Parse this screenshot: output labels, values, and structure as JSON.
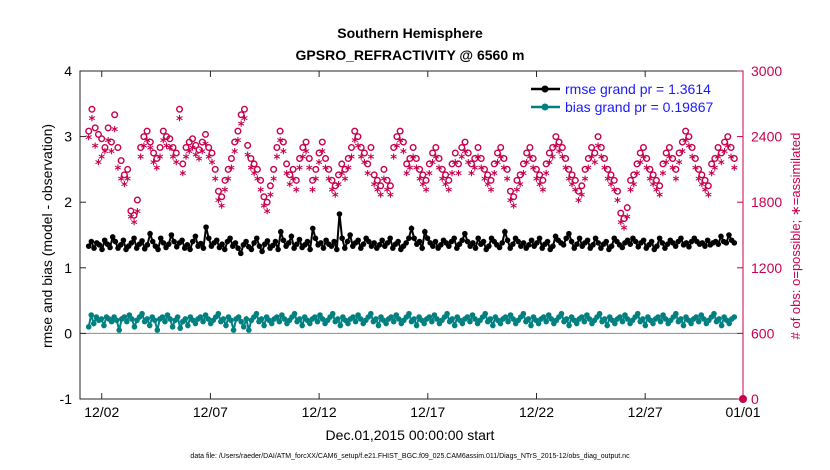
{
  "chart_data": {
    "type": "line",
    "title": "Southern Hemisphere",
    "subtitle": "GPSRO_REFRACTIVITY @ 6560 m",
    "xlabel": "Dec.01,2015 00:00:00 start",
    "ylabel": "rmse and bias (model - observation)",
    "y2label": "# of obs: o=possible; ∗=assimilated",
    "footer": "data file: /Users/raeder/DAI/ATM_forcXX/CAM6_setup/f.e21.FHIST_BGC.f09_025.CAM6assim.011/Diags_NTrS_2015-12/obs_diag_output.nc",
    "xlim": [
      0.5,
      31.0
    ],
    "ylim": [
      -1,
      4
    ],
    "y2lim": [
      0,
      3000
    ],
    "x_ticks": [
      1.5,
      6.5,
      11.5,
      16.5,
      21.5,
      26.5,
      31.0
    ],
    "x_tick_labels": [
      "12/02",
      "12/07",
      "12/12",
      "12/17",
      "12/22",
      "12/27",
      "01/01"
    ],
    "y_ticks": [
      -1,
      0,
      1,
      2,
      3,
      4
    ],
    "y_tick_labels": [
      "-1",
      "0",
      "1",
      "2",
      "3",
      "4"
    ],
    "y2_ticks": [
      0,
      600,
      1200,
      1800,
      2400,
      3000
    ],
    "y2_tick_labels": [
      "0",
      "600",
      "1200",
      "1800",
      "2400",
      "3000"
    ],
    "zero_line_y": 0,
    "rmse": {
      "legend": "rmse grand pr = 1.3614",
      "color": "#000000",
      "values": [
        1.33,
        1.4,
        1.3,
        1.38,
        1.35,
        1.28,
        1.42,
        1.36,
        1.31,
        1.47,
        1.4,
        1.3,
        1.35,
        1.42,
        1.28,
        1.33,
        1.38,
        1.45,
        1.3,
        1.36,
        1.41,
        1.29,
        1.35,
        1.52,
        1.4,
        1.33,
        1.28,
        1.45,
        1.38,
        1.31,
        1.36,
        1.5,
        1.4,
        1.32,
        1.38,
        1.42,
        1.3,
        1.35,
        1.28,
        1.4,
        1.48,
        1.33,
        1.37,
        1.3,
        1.62,
        1.45,
        1.33,
        1.38,
        1.42,
        1.31,
        1.36,
        1.28,
        1.4,
        1.45,
        1.33,
        1.38,
        1.3,
        1.22,
        1.35,
        1.4,
        1.32,
        1.28,
        1.38,
        1.45,
        1.33,
        1.25,
        1.36,
        1.41,
        1.3,
        1.34,
        1.4,
        1.28,
        1.55,
        1.42,
        1.33,
        1.38,
        1.48,
        1.3,
        1.36,
        1.43,
        1.31,
        1.35,
        1.4,
        1.28,
        1.6,
        1.45,
        1.35,
        1.38,
        1.3,
        1.42,
        1.36,
        1.33,
        1.4,
        1.28,
        1.82,
        1.45,
        1.3,
        1.4,
        1.5,
        1.33,
        1.38,
        1.42,
        1.3,
        1.36,
        1.45,
        1.4,
        1.33,
        1.38,
        1.3,
        1.35,
        1.42,
        1.33,
        1.38,
        1.45,
        1.3,
        1.36,
        1.4,
        1.28,
        1.33,
        1.38,
        1.45,
        1.6,
        1.45,
        1.36,
        1.4,
        1.3,
        1.55,
        1.45,
        1.38,
        1.33,
        1.4,
        1.3,
        1.35,
        1.42,
        1.38,
        1.33,
        1.4,
        1.45,
        1.3,
        1.36,
        1.42,
        1.52,
        1.4,
        1.33,
        1.38,
        1.3,
        1.45,
        1.36,
        1.4,
        1.28,
        1.33,
        1.45,
        1.4,
        1.35,
        1.31,
        1.38,
        1.55,
        1.42,
        1.3,
        1.36,
        1.45,
        1.4,
        1.33,
        1.38,
        1.3,
        1.35,
        1.42,
        1.33,
        1.38,
        1.45,
        1.3,
        1.36,
        1.4,
        1.28,
        1.33,
        1.48,
        1.42,
        1.38,
        1.35,
        1.45,
        1.52,
        1.4,
        1.3,
        1.36,
        1.45,
        1.33,
        1.38,
        1.42,
        1.3,
        1.35,
        1.45,
        1.38,
        1.3,
        1.36,
        1.4,
        1.28,
        1.33,
        1.45,
        1.4,
        1.35,
        1.31,
        1.38,
        1.42,
        1.36,
        1.45,
        1.4,
        1.32,
        1.38,
        1.42,
        1.3,
        1.35,
        1.4,
        1.28,
        1.33,
        1.45,
        1.38,
        1.3,
        1.36,
        1.42,
        1.38,
        1.33,
        1.4,
        1.45,
        1.35,
        1.38,
        1.32,
        1.4,
        1.45,
        1.4,
        1.36,
        1.38,
        1.33,
        1.42,
        1.35,
        1.38,
        1.4,
        1.36,
        1.48,
        1.4,
        1.38,
        1.5,
        1.42,
        1.38
      ]
    },
    "bias": {
      "legend": "bias grand pr = 0.19867",
      "color": "#008080",
      "values": [
        0.1,
        0.28,
        0.15,
        0.25,
        0.2,
        0.22,
        0.12,
        0.25,
        0.22,
        0.18,
        0.25,
        0.2,
        0.05,
        0.22,
        0.25,
        0.18,
        0.28,
        0.22,
        0.1,
        0.2,
        0.25,
        0.3,
        0.18,
        0.22,
        0.12,
        0.25,
        0.2,
        0.05,
        0.22,
        0.25,
        0.18,
        0.28,
        0.22,
        0.1,
        0.2,
        0.25,
        0.08,
        0.18,
        0.22,
        0.12,
        0.25,
        0.2,
        0.15,
        0.22,
        0.25,
        0.18,
        0.28,
        0.22,
        0.15,
        0.2,
        0.25,
        0.3,
        0.18,
        0.22,
        0.12,
        0.25,
        0.2,
        0.05,
        0.22,
        0.25,
        0.18,
        0.1,
        0.22,
        0.05,
        0.2,
        0.25,
        0.3,
        0.18,
        0.22,
        0.12,
        0.25,
        0.2,
        0.15,
        0.22,
        0.25,
        0.18,
        0.28,
        0.22,
        0.15,
        0.2,
        0.25,
        0.3,
        0.18,
        0.22,
        0.12,
        0.25,
        0.2,
        0.15,
        0.22,
        0.25,
        0.18,
        0.28,
        0.22,
        0.15,
        0.2,
        0.25,
        0.3,
        0.18,
        0.22,
        0.12,
        0.25,
        0.2,
        0.15,
        0.22,
        0.25,
        0.18,
        0.28,
        0.22,
        0.15,
        0.2,
        0.25,
        0.3,
        0.18,
        0.22,
        0.12,
        0.25,
        0.2,
        0.15,
        0.22,
        0.25,
        0.18,
        0.28,
        0.22,
        0.15,
        0.2,
        0.25,
        0.3,
        0.18,
        0.22,
        0.12,
        0.25,
        0.2,
        0.15,
        0.22,
        0.25,
        0.18,
        0.28,
        0.22,
        0.15,
        0.2,
        0.25,
        0.3,
        0.18,
        0.22,
        0.12,
        0.25,
        0.2,
        0.15,
        0.22,
        0.25,
        0.18,
        0.28,
        0.22,
        0.15,
        0.2,
        0.25,
        0.3,
        0.18,
        0.22,
        0.12,
        0.25,
        0.2,
        0.15,
        0.22,
        0.25,
        0.18,
        0.28,
        0.22,
        0.15,
        0.2,
        0.25,
        0.3,
        0.18,
        0.22,
        0.12,
        0.25,
        0.2,
        0.15,
        0.22,
        0.25,
        0.18,
        0.28,
        0.22,
        0.15,
        0.2,
        0.25,
        0.3,
        0.18,
        0.22,
        0.12,
        0.25,
        0.2,
        0.15,
        0.22,
        0.25,
        0.18,
        0.28,
        0.22,
        0.15,
        0.2,
        0.25,
        0.3,
        0.18,
        0.22,
        0.12,
        0.25,
        0.2,
        0.15,
        0.22,
        0.25,
        0.18,
        0.28,
        0.22,
        0.15,
        0.2,
        0.25,
        0.3,
        0.18,
        0.22,
        0.12,
        0.25,
        0.2,
        0.15,
        0.22,
        0.25,
        0.18,
        0.28,
        0.22,
        0.15,
        0.2,
        0.25,
        0.3,
        0.18,
        0.22,
        0.12,
        0.25,
        0.2,
        0.15,
        0.22,
        0.25,
        0.18,
        0.28,
        0.22,
        0.15,
        0.2,
        0.25,
        0.3,
        0.18,
        0.22,
        0.12,
        0.25,
        0.2,
        0.15,
        0.22,
        0.25
      ]
    },
    "obs_possible": {
      "marker": "o",
      "color": "#c8004e",
      "values": [
        2450,
        2650,
        2480,
        2420,
        2380,
        2300,
        2480,
        2350,
        2600,
        2300,
        2180,
        2050,
        2100,
        1720,
        1680,
        1820,
        2300,
        2400,
        2450,
        2350,
        2250,
        2200,
        2300,
        2450,
        2400,
        2380,
        2300,
        2250,
        2650,
        2150,
        2300,
        2350,
        2380,
        2320,
        2280,
        2350,
        2420,
        2300,
        2250,
        2100,
        1900,
        1850,
        2000,
        2100,
        2200,
        2350,
        2450,
        2600,
        2650,
        2320,
        2200,
        2150,
        2100,
        2000,
        1850,
        1800,
        1950,
        2100,
        2300,
        2450,
        2350,
        2150,
        2050,
        2100,
        2000,
        2200,
        2300,
        2350,
        2200,
        2000,
        2100,
        2250,
        2350,
        2200,
        2100,
        2000,
        1950,
        2050,
        2150,
        2100,
        2200,
        2300,
        2450,
        2400,
        2300,
        2250,
        2150,
        2300,
        2050,
        2000,
        1950,
        2100,
        2000,
        1950,
        2300,
        2400,
        2450,
        2350,
        2150,
        2200,
        2300,
        2200,
        2100,
        2050,
        2000,
        2150,
        2250,
        2300,
        2200,
        2100,
        2050,
        2000,
        2150,
        2250,
        2150,
        2300,
        2350,
        2250,
        2150,
        2200,
        2300,
        2200,
        2100,
        2050,
        2000,
        2150,
        2250,
        2300,
        2200,
        2100,
        1900,
        1850,
        2000,
        2050,
        2150,
        2250,
        2300,
        2200,
        2100,
        2050,
        2000,
        2150,
        2250,
        2300,
        2400,
        2350,
        2300,
        2200,
        2100,
        2050,
        2000,
        1900,
        1950,
        2100,
        2200,
        2300,
        2250,
        2400,
        2300,
        2200,
        2100,
        2050,
        2000,
        1900,
        1700,
        1650,
        1750,
        2000,
        2050,
        2150,
        2250,
        2300,
        2200,
        2100,
        2050,
        2000,
        1950,
        2150,
        2250,
        2300,
        2200,
        2100,
        2250,
        2350,
        2450,
        2400,
        2300,
        2200,
        2100,
        2050,
        2000,
        1950,
        2150,
        2200,
        2300,
        2250,
        2350,
        2400,
        2300,
        2200
      ]
    },
    "obs_assimilated": {
      "marker": "*",
      "color": "#c8004e",
      "values": [
        2380,
        2550,
        2300,
        2150,
        2200,
        2250,
        2350,
        2250,
        2450,
        2100,
        2000,
        1950,
        2000,
        1650,
        1600,
        1700,
        2200,
        2300,
        2350,
        2280,
        2150,
        2100,
        2200,
        2350,
        2300,
        2280,
        2200,
        2150,
        2550,
        2050,
        2200,
        2250,
        2280,
        2220,
        2180,
        2250,
        2320,
        2200,
        2150,
        2000,
        1800,
        1750,
        1900,
        2000,
        2100,
        2250,
        2350,
        2500,
        2550,
        2220,
        2100,
        2050,
        2000,
        1900,
        1750,
        1700,
        1850,
        2000,
        2200,
        2350,
        2250,
        2050,
        1950,
        2000,
        1900,
        2100,
        2200,
        2250,
        2100,
        1900,
        2000,
        2150,
        2250,
        2100,
        2000,
        1900,
        1850,
        1950,
        2050,
        2000,
        2100,
        2200,
        2350,
        2300,
        2200,
        2150,
        2050,
        2200,
        1950,
        1900,
        1850,
        2000,
        1900,
        1850,
        2200,
        2300,
        2350,
        2250,
        2050,
        2100,
        2200,
        2100,
        2000,
        1950,
        1900,
        2050,
        2150,
        2200,
        2100,
        2000,
        1950,
        1900,
        2050,
        2150,
        2050,
        2200,
        2250,
        2150,
        2050,
        2100,
        2200,
        2100,
        2000,
        1950,
        1900,
        2050,
        2150,
        2200,
        2100,
        2000,
        1800,
        1750,
        1900,
        1950,
        2050,
        2150,
        2200,
        2100,
        2000,
        1950,
        1900,
        2050,
        2150,
        2200,
        2300,
        2250,
        2200,
        2100,
        2000,
        1950,
        1900,
        1800,
        1850,
        2000,
        2100,
        2200,
        2150,
        2300,
        2200,
        2100,
        2000,
        1950,
        1900,
        1800,
        1600,
        1550,
        1650,
        1900,
        1950,
        2050,
        2150,
        2200,
        2100,
        2000,
        1950,
        1900,
        1850,
        2050,
        2150,
        2200,
        2100,
        2000,
        2150,
        2250,
        2350,
        2300,
        2200,
        2100,
        2000,
        1950,
        1900,
        1850,
        2050,
        2100,
        2200,
        2150,
        2250,
        2300,
        2200,
        2100
      ]
    }
  }
}
